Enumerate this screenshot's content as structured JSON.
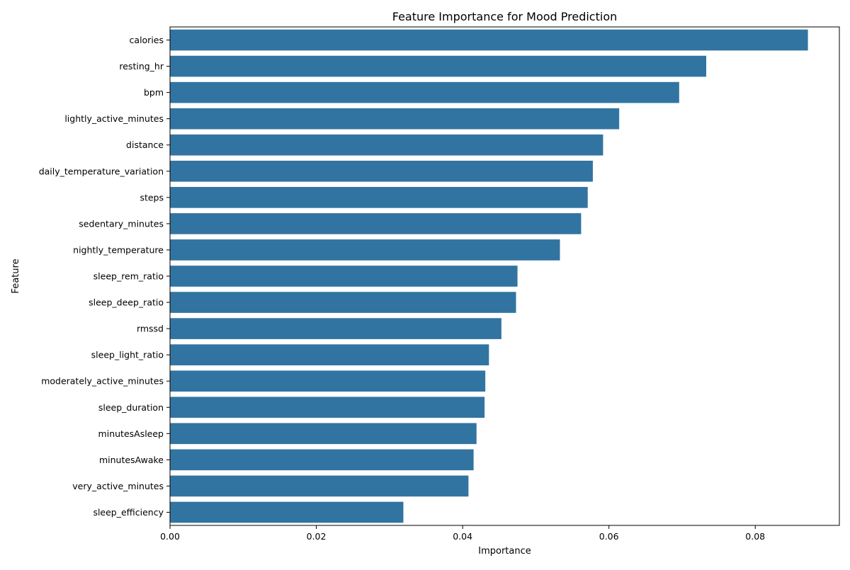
{
  "chart_data": {
    "type": "bar",
    "orientation": "horizontal",
    "title": "Feature Importance for Mood Prediction",
    "xlabel": "Importance",
    "ylabel": "Feature",
    "xlim": [
      0,
      0.0915
    ],
    "xticks": [
      0.0,
      0.02,
      0.04,
      0.06,
      0.08
    ],
    "xtick_labels": [
      "0.00",
      "0.02",
      "0.04",
      "0.06",
      "0.08"
    ],
    "grid": false,
    "bar_color": "#3274a1",
    "categories": [
      "calories",
      "resting_hr",
      "bpm",
      "lightly_active_minutes",
      "distance",
      "daily_temperature_variation",
      "steps",
      "sedentary_minutes",
      "nightly_temperature",
      "sleep_rem_ratio",
      "sleep_deep_ratio",
      "rmssd",
      "sleep_light_ratio",
      "moderately_active_minutes",
      "sleep_duration",
      "minutesAsleep",
      "minutesAwake",
      "very_active_minutes",
      "sleep_efficiency"
    ],
    "values": [
      0.0872,
      0.0733,
      0.0696,
      0.0614,
      0.0592,
      0.0578,
      0.0571,
      0.0562,
      0.0533,
      0.0475,
      0.0473,
      0.0453,
      0.0436,
      0.0431,
      0.043,
      0.0419,
      0.0415,
      0.0408,
      0.0319
    ]
  }
}
